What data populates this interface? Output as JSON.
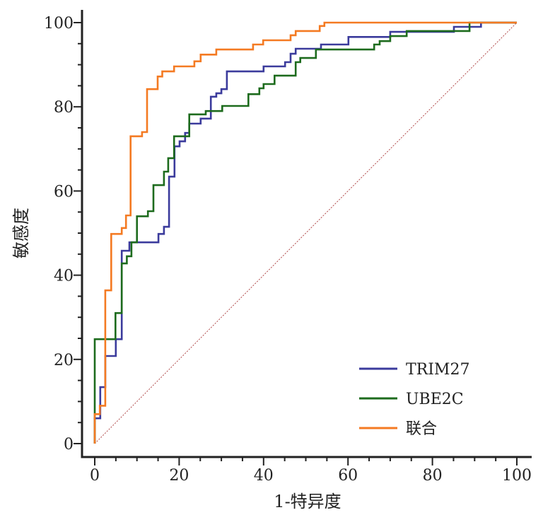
{
  "chart_data": {
    "type": "line",
    "title": "",
    "xlabel": "1-特异度",
    "ylabel": "敏感度",
    "xlim": [
      0,
      100
    ],
    "ylim": [
      0,
      100
    ],
    "xticks": [
      "0",
      "20",
      "40",
      "60",
      "80",
      "100"
    ],
    "yticks": [
      "0",
      "20",
      "40",
      "60",
      "80",
      "100"
    ],
    "grid": false,
    "legend_position": "bottom-right",
    "reference_line": {
      "x": [
        0,
        100
      ],
      "y": [
        0,
        100
      ],
      "color": "#b04848"
    },
    "series": [
      {
        "name": "TRIM27",
        "color": "#3b3b9c",
        "x": [
          0,
          0,
          1.3,
          1.3,
          2.5,
          2.5,
          5.0,
          5.0,
          6.4,
          6.4,
          8.2,
          8.2,
          15.1,
          15.1,
          16.4,
          16.4,
          17.6,
          17.6,
          18.9,
          18.9,
          20.1,
          20.1,
          21.4,
          21.4,
          22.4,
          22.4,
          25.1,
          25.1,
          27.5,
          27.5,
          28.8,
          28.8,
          30,
          30,
          31.3,
          31.3,
          40,
          40,
          45.1,
          45.1,
          46.4,
          46.4,
          47.6,
          47.6,
          53.6,
          53.6,
          60.1,
          60.1,
          70,
          70,
          85.1,
          85.1,
          91.5,
          91.5,
          100
        ],
        "y": [
          0,
          6.0,
          6.0,
          13.4,
          13.4,
          20.8,
          20.8,
          24.8,
          24.8,
          45.8,
          45.8,
          47.8,
          47.8,
          49.8,
          49.8,
          51.5,
          51.5,
          63.4,
          63.4,
          70.6,
          70.6,
          71.8,
          71.8,
          73.8,
          73.8,
          76,
          76,
          77.2,
          77.2,
          82.4,
          82.4,
          83.2,
          83.2,
          84.2,
          84.2,
          88.4,
          88.4,
          89.6,
          89.6,
          90.6,
          90.6,
          92.6,
          92.6,
          93.8,
          93.8,
          94.8,
          94.8,
          96.6,
          96.6,
          97.8,
          97.8,
          99,
          99,
          100,
          100
        ]
      },
      {
        "name": "UBE2C",
        "color": "#1d6b1d",
        "x": [
          0,
          0,
          4.9,
          4.9,
          6.4,
          6.4,
          7.6,
          7.6,
          8.7,
          8.7,
          10,
          10,
          12.6,
          12.6,
          13.9,
          13.9,
          16.4,
          16.4,
          17.4,
          17.4,
          18.8,
          18.8,
          22.4,
          22.4,
          26.3,
          26.3,
          30.2,
          30.2,
          36.4,
          36.4,
          39,
          39,
          40,
          40,
          42.6,
          42.6,
          47.6,
          47.6,
          48.7,
          48.7,
          52.4,
          52.4,
          66.2,
          66.2,
          67.5,
          67.5,
          70,
          70,
          73.9,
          73.9,
          88.8,
          88.8,
          100
        ],
        "y": [
          0,
          24.8,
          24.8,
          31,
          31,
          42.8,
          42.8,
          44.5,
          44.5,
          47.8,
          47.8,
          54,
          54,
          55.2,
          55.2,
          61.4,
          61.4,
          64.6,
          64.6,
          67.8,
          67.8,
          73,
          73,
          78.2,
          78.2,
          79,
          79,
          80.2,
          80.2,
          83,
          83,
          84.4,
          84.4,
          85.4,
          85.4,
          87.4,
          87.4,
          90.6,
          90.6,
          91.6,
          91.6,
          93.6,
          93.6,
          94.8,
          94.8,
          95.6,
          95.6,
          96.8,
          96.8,
          98,
          98,
          100,
          100
        ]
      },
      {
        "name": "联合",
        "color": "#f47a22",
        "x": [
          0,
          0,
          1.2,
          1.2,
          2.5,
          2.5,
          3.9,
          3.9,
          6.4,
          6.4,
          7.4,
          7.4,
          8.5,
          8.5,
          11.2,
          11.2,
          12.4,
          12.4,
          14.9,
          14.9,
          16,
          16,
          18.8,
          18.8,
          23.6,
          23.6,
          25.1,
          25.1,
          28.8,
          28.8,
          37.5,
          37.5,
          39.9,
          39.9,
          46.4,
          46.4,
          47.6,
          47.6,
          53.3,
          53.3,
          54.4,
          54.4,
          100
        ],
        "y": [
          0,
          7,
          7,
          9,
          9,
          36.4,
          36.4,
          49.8,
          49.8,
          51.2,
          51.2,
          54.2,
          54.2,
          73,
          73,
          74,
          74,
          84.2,
          84.2,
          87.2,
          87.2,
          88.4,
          88.4,
          89.6,
          89.6,
          90.8,
          90.8,
          92.4,
          92.4,
          93.6,
          93.6,
          94.8,
          94.8,
          95.8,
          95.8,
          97,
          97,
          98,
          98,
          99.2,
          99.2,
          100,
          100
        ]
      }
    ]
  }
}
